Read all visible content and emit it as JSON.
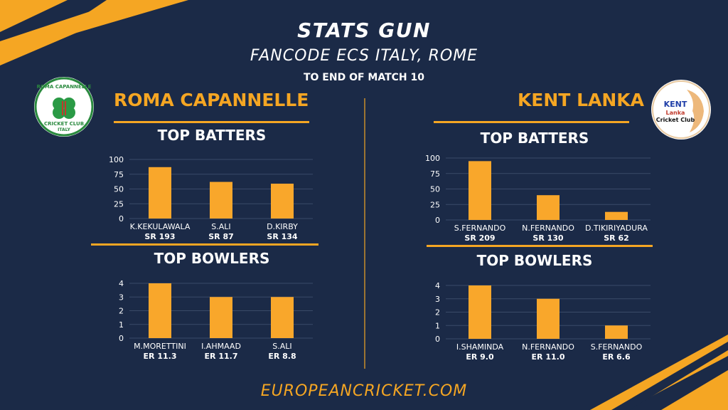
{
  "header": {
    "title": "STATS GUN",
    "subtitle": "FANCODE ECS ITALY, ROME",
    "note": "TO END OF MATCH 10"
  },
  "teams": {
    "left": {
      "name": "ROMA CAPANNELLE",
      "logo_top": "ROMA CAPANNELLE",
      "logo_bottom1": "CRICKET CLUB",
      "logo_bottom2": "ITALY"
    },
    "right": {
      "name": "KENT LANKA",
      "logo_line1": "KENT",
      "logo_line2": "Lanka",
      "logo_line3": "Cricket Club"
    }
  },
  "sections": {
    "batters": "TOP BATTERS",
    "bowlers": "TOP BOWLERS"
  },
  "footer": "EUROPEANCRICKET.COM",
  "colors": {
    "background": "#1b2a47",
    "accent": "#f5a623",
    "bar": "#f9a72b"
  },
  "chart_data": [
    {
      "type": "bar",
      "categories": [
        "K.KEKULAWALA",
        "S.ALI",
        "D.KIRBY"
      ],
      "sub_labels": [
        "SR 193",
        "SR 87",
        "SR 134"
      ],
      "values": [
        87,
        62,
        59
      ],
      "yticks": [
        0,
        25,
        50,
        75,
        100
      ],
      "ylim": [
        0,
        100
      ]
    },
    {
      "type": "bar",
      "categories": [
        "S.FERNANDO",
        "N.FERNANDO",
        "D.TIKIRIYADURA"
      ],
      "sub_labels": [
        "SR 209",
        "SR 130",
        "SR 62"
      ],
      "values": [
        95,
        40,
        13
      ],
      "yticks": [
        0,
        25,
        50,
        75,
        100
      ],
      "ylim": [
        0,
        100
      ]
    },
    {
      "type": "bar",
      "categories": [
        "M.MORETTINI",
        "I.AHMAAD",
        "S.ALI"
      ],
      "sub_labels": [
        "ER 11.3",
        "ER 11.7",
        "ER 8.8"
      ],
      "values": [
        4,
        3,
        3
      ],
      "yticks": [
        0,
        1,
        2,
        3,
        4
      ],
      "ylim": [
        0,
        4
      ]
    },
    {
      "type": "bar",
      "categories": [
        "I.SHAMINDA",
        "N.FERNANDO",
        "S.FERNANDO"
      ],
      "sub_labels": [
        "ER 9.0",
        "ER 11.0",
        "ER 6.6"
      ],
      "values": [
        4,
        3,
        1
      ],
      "yticks": [
        0,
        1,
        2,
        3,
        4
      ],
      "ylim": [
        0,
        4
      ]
    }
  ]
}
